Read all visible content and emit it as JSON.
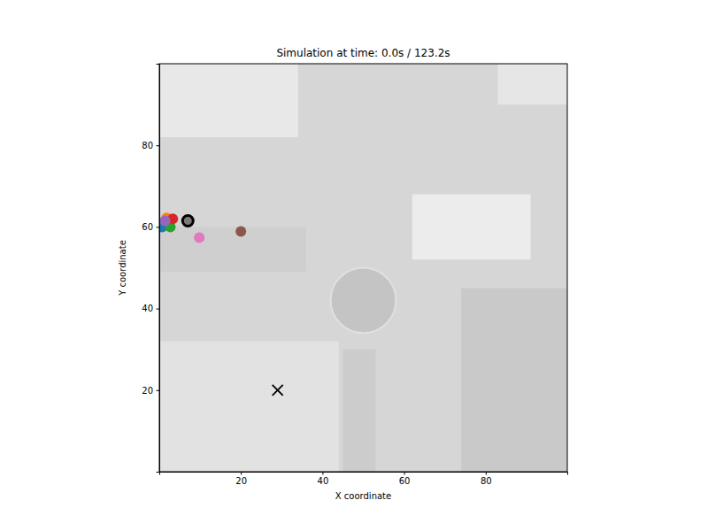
{
  "chart_data": {
    "type": "scatter",
    "title": "Simulation at time: 0.0s / 123.2s",
    "x_label": "X coordinate",
    "y_label": "Y coordinate",
    "xlim": [
      0,
      100
    ],
    "ylim": [
      0,
      100
    ],
    "xticks": [
      20,
      40,
      60,
      80
    ],
    "yticks": [
      20,
      40,
      60,
      80
    ],
    "grid": false,
    "series": [
      {
        "x": [
          0.7,
          1.8,
          2.7,
          3.3,
          1.4,
          20,
          9.8
        ],
        "values": [
          60,
          62.2,
          60,
          62,
          61.5,
          58.9,
          57.4
        ],
        "colors": [
          "#1f77b4",
          "#ff7f0e",
          "#2ca02c",
          "#d62728",
          "#9467bd",
          "#8c564b",
          "#e377c2"
        ],
        "marker": "circle"
      },
      {
        "x": [
          7
        ],
        "values": [
          61.5
        ],
        "color": "#000000",
        "marker": "ring"
      },
      {
        "x": [
          29
        ],
        "values": [
          20
        ],
        "color": "#000000",
        "marker": "x"
      }
    ]
  }
}
